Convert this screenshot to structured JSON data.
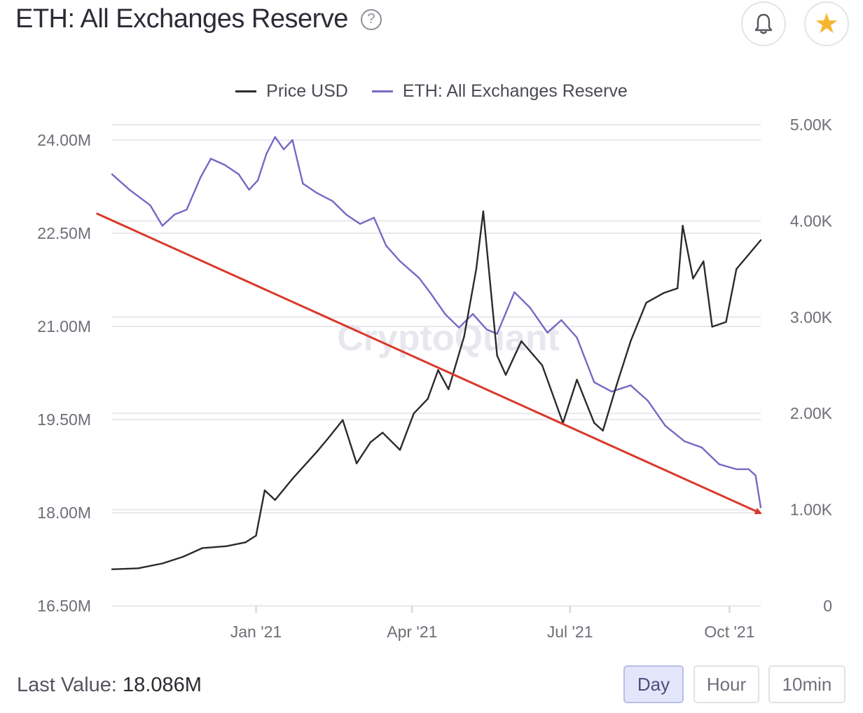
{
  "header": {
    "title": "ETH: All Exchanges Reserve",
    "help_glyph": "?",
    "bell_icon": "bell-icon",
    "star_icon": "star-icon",
    "star_glyph": "★"
  },
  "footer": {
    "last_value_label": "Last Value:",
    "last_value": "18.086M",
    "buttons": [
      {
        "label": "Day",
        "active": true
      },
      {
        "label": "Hour",
        "active": false
      },
      {
        "label": "10min",
        "active": false
      }
    ]
  },
  "watermark": "CryptoQuant",
  "colors": {
    "price": "#2b2b2b",
    "reserve": "#7469c4",
    "trend": "#d9392b",
    "grid": "#e8e8ee",
    "axis_text": "#6e6e78",
    "active_button": "#e3e6fa"
  },
  "chart_data": {
    "type": "line",
    "title": "ETH: All Exchanges Reserve",
    "legend": [
      "Price USD",
      "ETH: All Exchanges Reserve"
    ],
    "legend_position": "top-center",
    "grid": true,
    "x_ticks": [
      "Jan '21",
      "Apr '21",
      "Jul '21",
      "Oct '21"
    ],
    "left_axis": {
      "ticks": [
        "24.00M",
        "22.50M",
        "21.00M",
        "19.50M",
        "18.00M",
        "16.50M"
      ],
      "ylim": [
        16500000,
        24000000
      ]
    },
    "right_axis": {
      "ticks": [
        "5.00K",
        "4.00K",
        "3.00K",
        "2.00K",
        "1.00K",
        "0"
      ],
      "ylim": [
        0,
        5000
      ]
    },
    "x_range": [
      "2020-10-10",
      "2021-10-19"
    ],
    "series": [
      {
        "name": "ETH: All Exchanges Reserve",
        "axis": "left",
        "points": [
          [
            "2020-10-10",
            23.45
          ],
          [
            "2020-10-20",
            23.2
          ],
          [
            "2020-11-01",
            22.95
          ],
          [
            "2020-11-08",
            22.62
          ],
          [
            "2020-11-15",
            22.8
          ],
          [
            "2020-11-22",
            22.88
          ],
          [
            "2020-11-30",
            23.4
          ],
          [
            "2020-12-06",
            23.7
          ],
          [
            "2020-12-14",
            23.6
          ],
          [
            "2020-12-22",
            23.45
          ],
          [
            "2020-12-28",
            23.2
          ],
          [
            "2021-01-02",
            23.35
          ],
          [
            "2021-01-07",
            23.78
          ],
          [
            "2021-01-12",
            24.05
          ],
          [
            "2021-01-17",
            23.85
          ],
          [
            "2021-01-22",
            24.0
          ],
          [
            "2021-01-28",
            23.3
          ],
          [
            "2021-02-05",
            23.15
          ],
          [
            "2021-02-14",
            23.02
          ],
          [
            "2021-02-22",
            22.8
          ],
          [
            "2021-03-02",
            22.65
          ],
          [
            "2021-03-10",
            22.75
          ],
          [
            "2021-03-17",
            22.3
          ],
          [
            "2021-03-25",
            22.05
          ],
          [
            "2021-04-05",
            21.78
          ],
          [
            "2021-04-12",
            21.52
          ],
          [
            "2021-04-20",
            21.2
          ],
          [
            "2021-04-28",
            20.98
          ],
          [
            "2021-05-06",
            21.2
          ],
          [
            "2021-05-14",
            20.95
          ],
          [
            "2021-05-20",
            20.88
          ],
          [
            "2021-05-30",
            21.55
          ],
          [
            "2021-06-08",
            21.3
          ],
          [
            "2021-06-18",
            20.9
          ],
          [
            "2021-06-26",
            21.1
          ],
          [
            "2021-07-05",
            20.82
          ],
          [
            "2021-07-15",
            20.1
          ],
          [
            "2021-07-25",
            19.95
          ],
          [
            "2021-08-05",
            20.05
          ],
          [
            "2021-08-15",
            19.8
          ],
          [
            "2021-08-25",
            19.4
          ],
          [
            "2021-09-05",
            19.15
          ],
          [
            "2021-09-15",
            19.05
          ],
          [
            "2021-09-25",
            18.78
          ],
          [
            "2021-10-05",
            18.7
          ],
          [
            "2021-10-12",
            18.7
          ],
          [
            "2021-10-16",
            18.6
          ],
          [
            "2021-10-19",
            18.086
          ]
        ]
      },
      {
        "name": "Price USD",
        "axis": "right",
        "points": [
          [
            "2020-10-10",
            380
          ],
          [
            "2020-10-25",
            390
          ],
          [
            "2020-11-08",
            440
          ],
          [
            "2020-11-20",
            510
          ],
          [
            "2020-12-01",
            600
          ],
          [
            "2020-12-15",
            620
          ],
          [
            "2020-12-26",
            660
          ],
          [
            "2021-01-01",
            730
          ],
          [
            "2021-01-06",
            1200
          ],
          [
            "2021-01-12",
            1100
          ],
          [
            "2021-01-22",
            1320
          ],
          [
            "2021-02-05",
            1600
          ],
          [
            "2021-02-12",
            1750
          ],
          [
            "2021-02-20",
            1930
          ],
          [
            "2021-02-28",
            1480
          ],
          [
            "2021-03-08",
            1700
          ],
          [
            "2021-03-15",
            1800
          ],
          [
            "2021-03-25",
            1620
          ],
          [
            "2021-04-02",
            2000
          ],
          [
            "2021-04-10",
            2150
          ],
          [
            "2021-04-16",
            2450
          ],
          [
            "2021-04-22",
            2250
          ],
          [
            "2021-05-01",
            2800
          ],
          [
            "2021-05-08",
            3500
          ],
          [
            "2021-05-12",
            4100
          ],
          [
            "2021-05-20",
            2600
          ],
          [
            "2021-05-25",
            2400
          ],
          [
            "2021-06-03",
            2750
          ],
          [
            "2021-06-15",
            2500
          ],
          [
            "2021-06-27",
            1900
          ],
          [
            "2021-07-05",
            2350
          ],
          [
            "2021-07-15",
            1900
          ],
          [
            "2021-07-20",
            1820
          ],
          [
            "2021-07-28",
            2300
          ],
          [
            "2021-08-05",
            2750
          ],
          [
            "2021-08-14",
            3150
          ],
          [
            "2021-08-24",
            3250
          ],
          [
            "2021-09-01",
            3300
          ],
          [
            "2021-09-04",
            3950
          ],
          [
            "2021-09-10",
            3400
          ],
          [
            "2021-09-16",
            3580
          ],
          [
            "2021-09-21",
            2900
          ],
          [
            "2021-09-29",
            2950
          ],
          [
            "2021-10-05",
            3500
          ],
          [
            "2021-10-12",
            3650
          ],
          [
            "2021-10-19",
            3800
          ]
        ]
      }
    ],
    "annotations": [
      {
        "type": "trend-arrow",
        "axis": "left",
        "from": [
          "2020-10-01",
          22.82
        ],
        "to": [
          "2021-10-19",
          17.99
        ]
      }
    ]
  }
}
